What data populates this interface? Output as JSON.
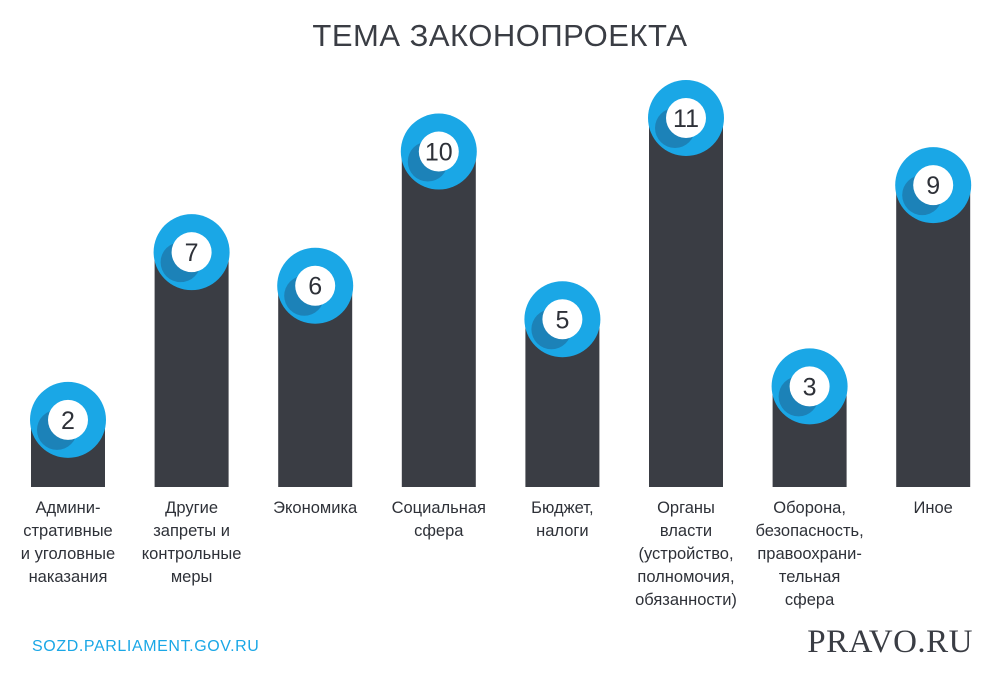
{
  "chart_data": {
    "type": "bar",
    "title": "ТЕМА ЗАКОНОПРОЕКТА",
    "categories": [
      "Админи-\nстративные\nи уголовные\nнаказания",
      "Другие\nзапреты и\nконтрольные\nмеры",
      "Экономика",
      "Социальная\nсфера",
      "Бюджет,\nналоги",
      "Органы\nвласти\n(устройство,\nполномочия,\nобязанности)",
      "Оборона,\nбезопасность,\nправоохрани-\nтельная\nсфера",
      "Иное"
    ],
    "values": [
      2,
      7,
      6,
      10,
      5,
      11,
      3,
      9
    ],
    "ylim": [
      0,
      11
    ],
    "grid": false,
    "colors": {
      "bar": "#3a3d44",
      "circle_outer": "#1aa7e6",
      "circle_shadow": "#1c82b8",
      "circle_inner": "#ffffff"
    }
  },
  "footer": {
    "source": "SOZD.PARLIAMENT.GOV.RU",
    "brand": "PRAVO.RU"
  }
}
